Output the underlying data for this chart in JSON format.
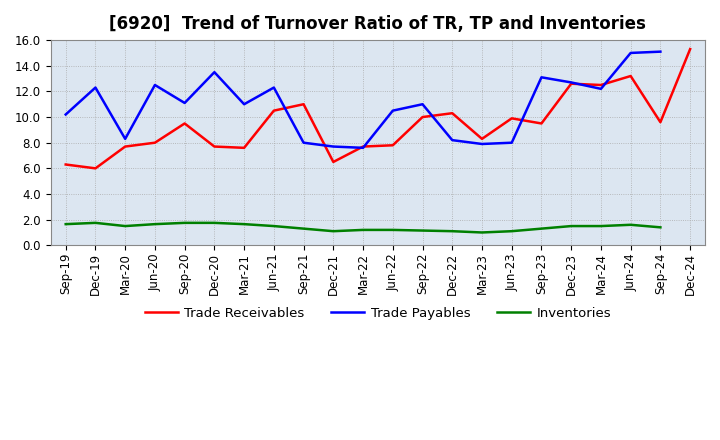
{
  "title": "[6920]  Trend of Turnover Ratio of TR, TP and Inventories",
  "x_labels": [
    "Sep-19",
    "Dec-19",
    "Mar-20",
    "Jun-20",
    "Sep-20",
    "Dec-20",
    "Mar-21",
    "Jun-21",
    "Sep-21",
    "Dec-21",
    "Mar-22",
    "Jun-22",
    "Sep-22",
    "Dec-22",
    "Mar-23",
    "Jun-23",
    "Sep-23",
    "Dec-23",
    "Mar-24",
    "Jun-24",
    "Sep-24",
    "Dec-24"
  ],
  "trade_receivables": [
    6.3,
    6.0,
    7.7,
    8.0,
    9.5,
    7.7,
    7.6,
    10.5,
    11.0,
    6.5,
    7.7,
    7.8,
    10.0,
    10.3,
    8.3,
    9.9,
    9.5,
    12.6,
    12.5,
    13.2,
    9.6,
    15.3
  ],
  "trade_payables": [
    10.2,
    12.3,
    8.3,
    12.5,
    11.1,
    13.5,
    11.0,
    12.3,
    8.0,
    7.7,
    7.6,
    10.5,
    11.0,
    8.2,
    7.9,
    8.0,
    13.1,
    12.7,
    12.2,
    15.0,
    15.1,
    null
  ],
  "inventories": [
    1.65,
    1.75,
    1.5,
    1.65,
    1.75,
    1.75,
    1.65,
    1.5,
    1.3,
    1.1,
    1.2,
    1.2,
    1.15,
    1.1,
    1.0,
    1.1,
    1.3,
    1.5,
    1.5,
    1.6,
    1.4,
    null
  ],
  "ylim": [
    0.0,
    16.0
  ],
  "yticks": [
    0.0,
    2.0,
    4.0,
    6.0,
    8.0,
    10.0,
    12.0,
    14.0,
    16.0
  ],
  "line_colors": {
    "trade_receivables": "#ff0000",
    "trade_payables": "#0000ff",
    "inventories": "#008000"
  },
  "line_width": 1.8,
  "background_color": "#ffffff",
  "plot_bg_color": "#dce6f1",
  "grid_color": "#aaaaaa",
  "title_fontsize": 12,
  "tick_fontsize": 8.5
}
